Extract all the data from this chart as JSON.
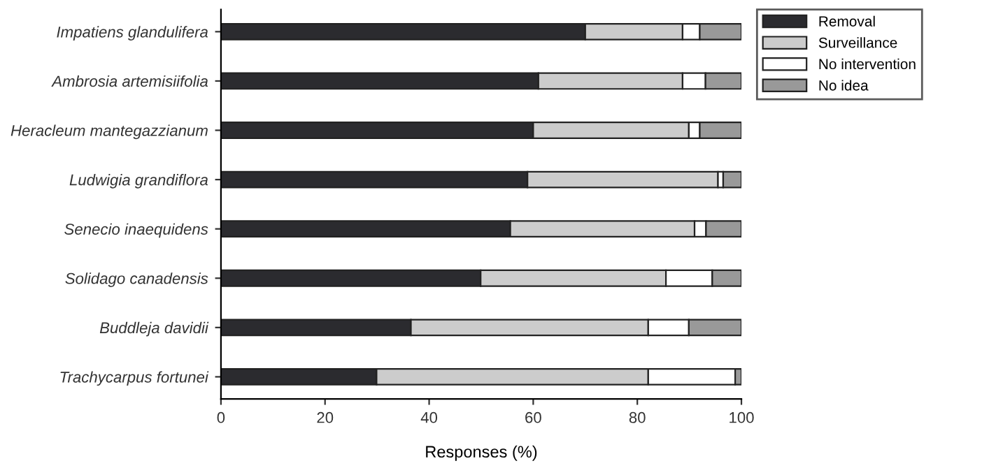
{
  "chart_data": {
    "type": "bar",
    "orientation": "horizontal",
    "stacked": true,
    "categories": [
      "Impatiens glandulifera",
      "Ambrosia artemisiifolia",
      "Heracleum mantegazzianum",
      "Ludwigia grandiflora",
      "Senecio inaequidens",
      "Solidago canadensis",
      "Buddleja davidii",
      "Trachycarpus fortunei"
    ],
    "series": [
      {
        "name": "Removal",
        "color": "#2b2b2f",
        "values": [
          70,
          61,
          60,
          58.9,
          55.6,
          49.9,
          36.5,
          29.9
        ]
      },
      {
        "name": "Surveillance",
        "color": "#cccccc",
        "values": [
          18.7,
          27.7,
          29.9,
          36.6,
          35.4,
          35.6,
          45.6,
          52.2
        ]
      },
      {
        "name": "No intervention",
        "color": "#ffffff",
        "values": [
          3.3,
          4.4,
          2.1,
          1.0,
          2.2,
          8.9,
          7.8,
          16.7
        ]
      },
      {
        "name": "No idea",
        "color": "#999999",
        "values": [
          8.0,
          6.9,
          8.0,
          3.5,
          6.8,
          5.6,
          10.1,
          1.2
        ]
      }
    ],
    "xlabel": "Responses (%)",
    "xlim": [
      0,
      100
    ],
    "xticks": [
      0,
      20,
      40,
      60,
      80,
      100
    ],
    "grid": false,
    "legend": "top right"
  }
}
